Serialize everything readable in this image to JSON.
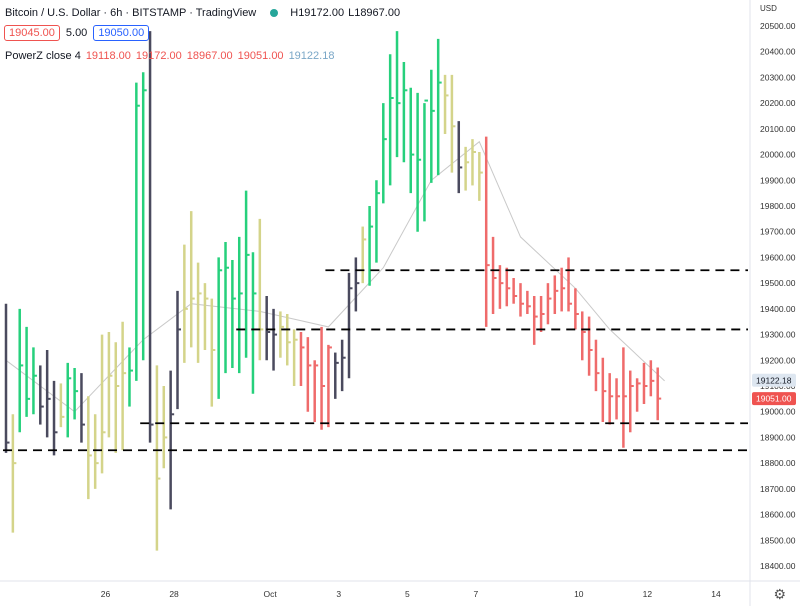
{
  "legend": {
    "symbol": "Bitcoin / U.S. Dollar · 6h · BITSTAMP · TradingView",
    "high": "H19172.00",
    "low": "L18967.00",
    "sell_price": "19045.00",
    "spread": "5.00",
    "buy_price": "19050.00"
  },
  "indicator": {
    "name": "PowerZ close 4",
    "values": [
      "19118.00",
      "19172.00",
      "18967.00",
      "19051.00"
    ],
    "ma_value": "19122.18"
  },
  "colors": {
    "up": "#26d07c",
    "down": "#ef6b6b",
    "neutral": "#d4d48a",
    "dark": "#4a4a5e",
    "ma": "#c9c9c9",
    "level": "#000000"
  },
  "chart_data": {
    "type": "ohlc",
    "currency_label": "USD",
    "ylim": [
      18300,
      20560
    ],
    "y_ticks": [
      18400,
      18500,
      18600,
      18700,
      18800,
      18900,
      19000,
      19100,
      19200,
      19300,
      19400,
      19500,
      19600,
      19700,
      19800,
      19900,
      20000,
      20100,
      20200,
      20300,
      20400,
      20500
    ],
    "x_ticks": [
      "26",
      "28",
      "Oct",
      "3",
      "5",
      "7",
      "10",
      "12",
      "14"
    ],
    "x_tick_bars": [
      14.5,
      24.5,
      38.5,
      48.5,
      58.5,
      68.5,
      83.5,
      93.5,
      103.5
    ],
    "price_labels": [
      {
        "text": "19122.18",
        "value": 19122.18,
        "style": "ma"
      },
      {
        "text": "19051.00",
        "value": 19051,
        "style": "last"
      }
    ],
    "levels": [
      {
        "value": 19550,
        "from_bar": 47
      },
      {
        "value": 19320,
        "from_bar": 34
      },
      {
        "value": 18955,
        "from_bar": 20
      },
      {
        "value": 18850,
        "from_bar": 0
      }
    ],
    "bar_count": 96,
    "bars": [
      {
        "h": 19420,
        "l": 18840,
        "c": 18880,
        "k": "d"
      },
      {
        "h": 18990,
        "l": 18530,
        "c": 18800,
        "k": "n"
      },
      {
        "h": 19400,
        "l": 18920,
        "c": 19180,
        "k": "u"
      },
      {
        "h": 19330,
        "l": 18980,
        "c": 19050,
        "k": "u"
      },
      {
        "h": 19250,
        "l": 18990,
        "c": 19140,
        "k": "u"
      },
      {
        "h": 19180,
        "l": 18950,
        "c": 19020,
        "k": "d"
      },
      {
        "h": 19240,
        "l": 18900,
        "c": 19050,
        "k": "d"
      },
      {
        "h": 19120,
        "l": 18830,
        "c": 18920,
        "k": "d"
      },
      {
        "h": 19110,
        "l": 18940,
        "c": 18980,
        "k": "n"
      },
      {
        "h": 19190,
        "l": 18900,
        "c": 19130,
        "k": "u"
      },
      {
        "h": 19170,
        "l": 18970,
        "c": 19080,
        "k": "u"
      },
      {
        "h": 19150,
        "l": 18880,
        "c": 18950,
        "k": "d"
      },
      {
        "h": 19060,
        "l": 18660,
        "c": 18830,
        "k": "n"
      },
      {
        "h": 18990,
        "l": 18700,
        "c": 18800,
        "k": "n"
      },
      {
        "h": 19300,
        "l": 18760,
        "c": 18920,
        "k": "n"
      },
      {
        "h": 19310,
        "l": 18900,
        "c": 19140,
        "k": "n"
      },
      {
        "h": 19270,
        "l": 18840,
        "c": 19100,
        "k": "n"
      },
      {
        "h": 19350,
        "l": 18850,
        "c": 19150,
        "k": "n"
      },
      {
        "h": 19250,
        "l": 19020,
        "c": 19160,
        "k": "u"
      },
      {
        "h": 20280,
        "l": 19120,
        "c": 20190,
        "k": "u"
      },
      {
        "h": 20320,
        "l": 19200,
        "c": 20250,
        "k": "u"
      },
      {
        "h": 20480,
        "l": 18880,
        "c": 18950,
        "k": "d"
      },
      {
        "h": 19180,
        "l": 18460,
        "c": 18740,
        "k": "n"
      },
      {
        "h": 19100,
        "l": 18780,
        "c": 18900,
        "k": "n"
      },
      {
        "h": 19160,
        "l": 18620,
        "c": 18990,
        "k": "d"
      },
      {
        "h": 19470,
        "l": 19010,
        "c": 19320,
        "k": "d"
      },
      {
        "h": 19650,
        "l": 19190,
        "c": 19400,
        "k": "n"
      },
      {
        "h": 19780,
        "l": 19250,
        "c": 19440,
        "k": "n"
      },
      {
        "h": 19580,
        "l": 19190,
        "c": 19460,
        "k": "n"
      },
      {
        "h": 19500,
        "l": 19240,
        "c": 19440,
        "k": "n"
      },
      {
        "h": 19440,
        "l": 19020,
        "c": 19240,
        "k": "n"
      },
      {
        "h": 19600,
        "l": 19050,
        "c": 19550,
        "k": "u"
      },
      {
        "h": 19660,
        "l": 19150,
        "c": 19560,
        "k": "u"
      },
      {
        "h": 19590,
        "l": 19170,
        "c": 19440,
        "k": "u"
      },
      {
        "h": 19680,
        "l": 19150,
        "c": 19460,
        "k": "u"
      },
      {
        "h": 19860,
        "l": 19210,
        "c": 19610,
        "k": "u"
      },
      {
        "h": 19620,
        "l": 19070,
        "c": 19460,
        "k": "u"
      },
      {
        "h": 19750,
        "l": 19200,
        "c": 19320,
        "k": "n"
      },
      {
        "h": 19450,
        "l": 19200,
        "c": 19310,
        "k": "d"
      },
      {
        "h": 19400,
        "l": 19160,
        "c": 19300,
        "k": "d"
      },
      {
        "h": 19390,
        "l": 19210,
        "c": 19330,
        "k": "n"
      },
      {
        "h": 19380,
        "l": 19180,
        "c": 19270,
        "k": "n"
      },
      {
        "h": 19320,
        "l": 19100,
        "c": 19280,
        "k": "n"
      },
      {
        "h": 19310,
        "l": 19100,
        "c": 19250,
        "k": "e"
      },
      {
        "h": 19290,
        "l": 19000,
        "c": 19180,
        "k": "e"
      },
      {
        "h": 19200,
        "l": 18960,
        "c": 19180,
        "k": "e"
      },
      {
        "h": 19330,
        "l": 18930,
        "c": 19100,
        "k": "e"
      },
      {
        "h": 19260,
        "l": 18940,
        "c": 19250,
        "k": "e"
      },
      {
        "h": 19230,
        "l": 19050,
        "c": 19190,
        "k": "d"
      },
      {
        "h": 19280,
        "l": 19080,
        "c": 19210,
        "k": "d"
      },
      {
        "h": 19540,
        "l": 19130,
        "c": 19480,
        "k": "d"
      },
      {
        "h": 19600,
        "l": 19390,
        "c": 19500,
        "k": "d"
      },
      {
        "h": 19720,
        "l": 19500,
        "c": 19670,
        "k": "n"
      },
      {
        "h": 19800,
        "l": 19490,
        "c": 19720,
        "k": "u"
      },
      {
        "h": 19900,
        "l": 19580,
        "c": 19850,
        "k": "u"
      },
      {
        "h": 20200,
        "l": 19810,
        "c": 20060,
        "k": "u"
      },
      {
        "h": 20390,
        "l": 19880,
        "c": 20220,
        "k": "u"
      },
      {
        "h": 20480,
        "l": 19990,
        "c": 20200,
        "k": "u"
      },
      {
        "h": 20360,
        "l": 19970,
        "c": 20250,
        "k": "u"
      },
      {
        "h": 20260,
        "l": 19850,
        "c": 20000,
        "k": "u"
      },
      {
        "h": 20240,
        "l": 19700,
        "c": 19980,
        "k": "u"
      },
      {
        "h": 20200,
        "l": 19740,
        "c": 20210,
        "k": "u"
      },
      {
        "h": 20330,
        "l": 19890,
        "c": 20170,
        "k": "u"
      },
      {
        "h": 20450,
        "l": 19920,
        "c": 20280,
        "k": "u"
      },
      {
        "h": 20310,
        "l": 20080,
        "c": 20230,
        "k": "n"
      },
      {
        "h": 20310,
        "l": 19930,
        "c": 20110,
        "k": "n"
      },
      {
        "h": 20130,
        "l": 19850,
        "c": 19950,
        "k": "d"
      },
      {
        "h": 20030,
        "l": 19860,
        "c": 19970,
        "k": "n"
      },
      {
        "h": 20060,
        "l": 19880,
        "c": 20010,
        "k": "n"
      },
      {
        "h": 20010,
        "l": 19820,
        "c": 19930,
        "k": "n"
      },
      {
        "h": 20070,
        "l": 19330,
        "c": 19570,
        "k": "e"
      },
      {
        "h": 19680,
        "l": 19380,
        "c": 19520,
        "k": "e"
      },
      {
        "h": 19570,
        "l": 19400,
        "c": 19500,
        "k": "e"
      },
      {
        "h": 19560,
        "l": 19410,
        "c": 19480,
        "k": "e"
      },
      {
        "h": 19520,
        "l": 19420,
        "c": 19450,
        "k": "e"
      },
      {
        "h": 19500,
        "l": 19370,
        "c": 19420,
        "k": "e"
      },
      {
        "h": 19470,
        "l": 19380,
        "c": 19410,
        "k": "e"
      },
      {
        "h": 19450,
        "l": 19260,
        "c": 19370,
        "k": "e"
      },
      {
        "h": 19450,
        "l": 19310,
        "c": 19380,
        "k": "e"
      },
      {
        "h": 19500,
        "l": 19340,
        "c": 19440,
        "k": "e"
      },
      {
        "h": 19530,
        "l": 19380,
        "c": 19470,
        "k": "e"
      },
      {
        "h": 19560,
        "l": 19390,
        "c": 19480,
        "k": "e"
      },
      {
        "h": 19600,
        "l": 19390,
        "c": 19420,
        "k": "e"
      },
      {
        "h": 19480,
        "l": 19320,
        "c": 19380,
        "k": "e"
      },
      {
        "h": 19390,
        "l": 19200,
        "c": 19310,
        "k": "e"
      },
      {
        "h": 19370,
        "l": 19140,
        "c": 19240,
        "k": "e"
      },
      {
        "h": 19280,
        "l": 19080,
        "c": 19150,
        "k": "e"
      },
      {
        "h": 19210,
        "l": 18960,
        "c": 19080,
        "k": "e"
      },
      {
        "h": 19150,
        "l": 18950,
        "c": 19060,
        "k": "e"
      },
      {
        "h": 19130,
        "l": 18970,
        "c": 19060,
        "k": "e"
      },
      {
        "h": 19250,
        "l": 18860,
        "c": 19060,
        "k": "e"
      },
      {
        "h": 19160,
        "l": 18920,
        "c": 19100,
        "k": "e"
      },
      {
        "h": 19130,
        "l": 19000,
        "c": 19110,
        "k": "e"
      },
      {
        "h": 19190,
        "l": 19030,
        "c": 19100,
        "k": "e"
      },
      {
        "h": 19200,
        "l": 19060,
        "c": 19120,
        "k": "e"
      },
      {
        "h": 19172,
        "l": 18967,
        "c": 19051,
        "k": "e"
      }
    ],
    "ma_line": [
      [
        0,
        19200
      ],
      [
        10,
        19000
      ],
      [
        20,
        19280
      ],
      [
        27,
        19420
      ],
      [
        37,
        19390
      ],
      [
        47,
        19330
      ],
      [
        55,
        19560
      ],
      [
        62,
        19900
      ],
      [
        69,
        20050
      ],
      [
        75,
        19680
      ],
      [
        83,
        19480
      ],
      [
        88,
        19320
      ],
      [
        96,
        19120
      ]
    ]
  }
}
